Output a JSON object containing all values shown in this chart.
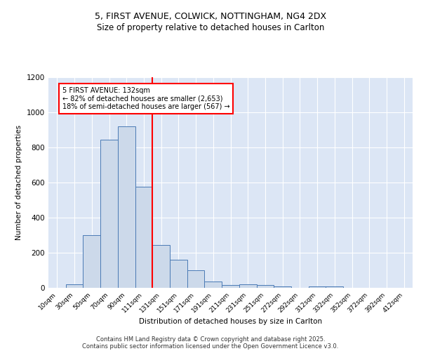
{
  "title1": "5, FIRST AVENUE, COLWICK, NOTTINGHAM, NG4 2DX",
  "title2": "Size of property relative to detached houses in Carlton",
  "xlabel": "Distribution of detached houses by size in Carlton",
  "ylabel": "Number of detached properties",
  "bar_labels": [
    "10sqm",
    "30sqm",
    "50sqm",
    "70sqm",
    "90sqm",
    "111sqm",
    "131sqm",
    "151sqm",
    "171sqm",
    "191sqm",
    "211sqm",
    "231sqm",
    "251sqm",
    "272sqm",
    "292sqm",
    "312sqm",
    "332sqm",
    "352sqm",
    "372sqm",
    "392sqm",
    "412sqm"
  ],
  "bar_values": [
    0,
    20,
    300,
    845,
    920,
    575,
    245,
    162,
    100,
    35,
    18,
    22,
    18,
    8,
    0,
    10,
    8,
    0,
    0,
    0,
    0
  ],
  "bar_color": "#ccd9ea",
  "bar_edge_color": "#4a7ab5",
  "vline_x": 6,
  "vline_color": "red",
  "annotation_line1": "5 FIRST AVENUE: 132sqm",
  "annotation_line2": "← 82% of detached houses are smaller (2,653)",
  "annotation_line3": "18% of semi-detached houses are larger (567) →",
  "ylim": [
    0,
    1200
  ],
  "yticks": [
    0,
    200,
    400,
    600,
    800,
    1000,
    1200
  ],
  "bg_color": "#dce6f5",
  "footer1": "Contains HM Land Registry data © Crown copyright and database right 2025.",
  "footer2": "Contains public sector information licensed under the Open Government Licence v3.0."
}
